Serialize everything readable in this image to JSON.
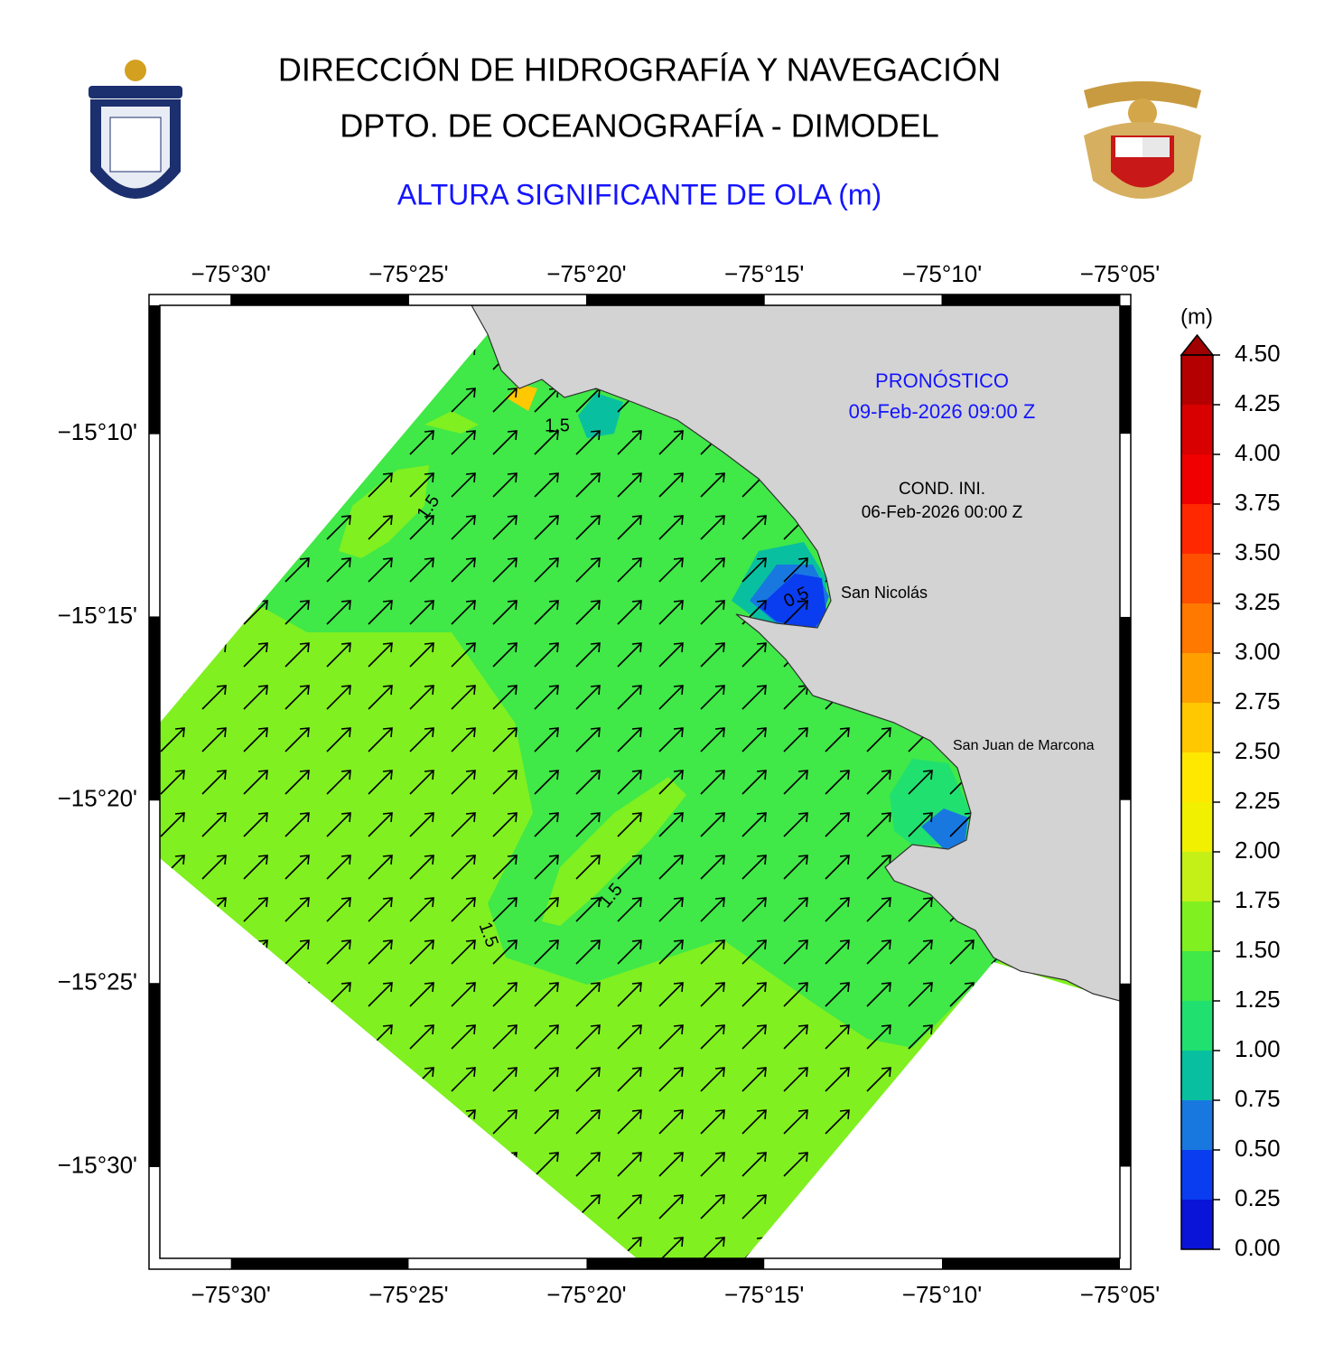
{
  "header": {
    "title": "DIRECCIÓN DE HIDROGRAFÍA Y NAVEGACIÓN",
    "subtitle": "DPTO. DE OCEANOGRAFÍA - DIMODEL",
    "variable": "ALTURA SIGNIFICANTE DE OLA (m)"
  },
  "map": {
    "xlim": [
      -75.5333,
      -75.0833
    ],
    "ylim": [
      -15.5417,
      -15.1083
    ],
    "xticks": [
      {
        "value": -75.5,
        "label": "−75°30'"
      },
      {
        "value": -75.4167,
        "label": "−75°25'"
      },
      {
        "value": -75.3333,
        "label": "−75°20'"
      },
      {
        "value": -75.25,
        "label": "−75°15'"
      },
      {
        "value": -75.1667,
        "label": "−75°10'"
      },
      {
        "value": -75.0833,
        "label": "−75°05'"
      }
    ],
    "yticks": [
      {
        "value": -15.1667,
        "label": "−15°10'"
      },
      {
        "value": -15.25,
        "label": "−15°15'"
      },
      {
        "value": -15.3333,
        "label": "−15°20'"
      },
      {
        "value": -15.4167,
        "label": "−15°25'"
      },
      {
        "value": -15.5,
        "label": "−15°30'"
      }
    ],
    "forecast_label": "PRONÓSTICO",
    "forecast_time": "09-Feb-2026 09:00 Z",
    "init_label": "COND. INI.",
    "init_time": "06-Feb-2026 00:00 Z",
    "places": [
      "San Nicolás",
      "San Juan de Marcona"
    ],
    "contour_labels": [
      "1.5",
      "1.5",
      "1.5",
      "1.5",
      "0.5"
    ]
  },
  "colorbar": {
    "unit": "(m)",
    "ticks": [
      {
        "value": 0,
        "label": "0.00"
      },
      {
        "value": 0.25,
        "label": "0.25"
      },
      {
        "value": 0.5,
        "label": "0.50"
      },
      {
        "value": 0.75,
        "label": "0.75"
      },
      {
        "value": 1,
        "label": "1.00"
      },
      {
        "value": 1.25,
        "label": "1.25"
      },
      {
        "value": 1.5,
        "label": "1.50"
      },
      {
        "value": 1.75,
        "label": "1.75"
      },
      {
        "value": 2,
        "label": "2.00"
      },
      {
        "value": 2.25,
        "label": "2.25"
      },
      {
        "value": 2.5,
        "label": "2.50"
      },
      {
        "value": 2.75,
        "label": "2.75"
      },
      {
        "value": 3,
        "label": "3.00"
      },
      {
        "value": 3.25,
        "label": "3.25"
      },
      {
        "value": 3.5,
        "label": "3.50"
      },
      {
        "value": 3.75,
        "label": "3.75"
      },
      {
        "value": 4,
        "label": "4.00"
      },
      {
        "value": 4.25,
        "label": "4.25"
      },
      {
        "value": 4.5,
        "label": "4.50"
      }
    ],
    "colors": [
      "#0a14d8",
      "#0a3cf0",
      "#1878e0",
      "#08c0a0",
      "#20e070",
      "#40e848",
      "#80f020",
      "#c4f018",
      "#f0f000",
      "#ffe800",
      "#ffc800",
      "#ffa000",
      "#ff7800",
      "#ff5000",
      "#ff2800",
      "#f00000",
      "#d80000",
      "#b40000"
    ],
    "extend_color": "#a00000"
  }
}
